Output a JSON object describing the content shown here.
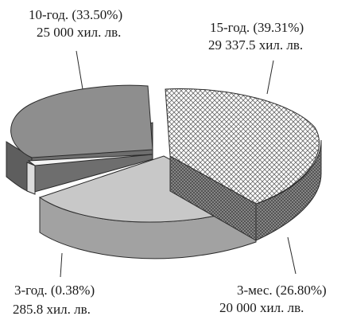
{
  "chart_data": {
    "type": "pie",
    "title": "",
    "units": "хил. лв.",
    "slices": [
      {
        "name": "15-год.",
        "percent_label": "(39.31%)",
        "value": 29337.5,
        "value_label": "29 337.5 хил. лв.",
        "pattern": "crosshatch"
      },
      {
        "name": "3-мес.",
        "percent_label": "(26.80%)",
        "value": 20000,
        "value_label": "20 000 хил. лв.",
        "pattern": "dark-gray"
      },
      {
        "name": "3-год.",
        "percent_label": "(0.38%)",
        "value": 285.8,
        "value_label": "285.8 хил. лв.",
        "pattern": "white"
      },
      {
        "name": "10-год.",
        "percent_label": "(33.50%)",
        "value": 25000,
        "value_label": "25 000 хил. лв.",
        "pattern": "gray"
      }
    ]
  },
  "labels": {
    "s15": {
      "line1": "15-год. (39.31%)",
      "line2": "29 337.5 хил. лв."
    },
    "s3m": {
      "line1": "3-мес. (26.80%)",
      "line2": "20 000 хил. лв."
    },
    "s3g": {
      "line1": "3-год. (0.38%)",
      "line2": "285.8 хил. лв."
    },
    "s10": {
      "line1": "10-год. (33.50%)",
      "line2": "25 000 хил. лв."
    }
  },
  "colors": {
    "gray_top": "#8e8e8e",
    "gray_side": "#6a6a6a",
    "light_top": "#c8c8c8",
    "light_side": "#a2a2a2",
    "white_top": "#f4f4f4",
    "outline": "#2a2a2a"
  }
}
